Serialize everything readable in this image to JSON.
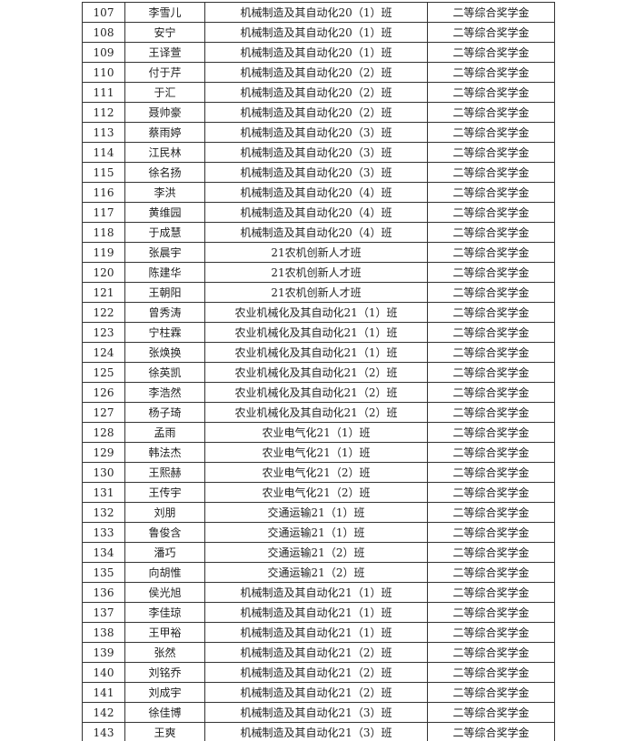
{
  "table": {
    "rows": [
      [
        "107",
        "李雪儿",
        "机械制造及其自动化20（1）班",
        "二等综合奖学金"
      ],
      [
        "108",
        "安宁",
        "机械制造及其自动化20（1）班",
        "二等综合奖学金"
      ],
      [
        "109",
        "王译萱",
        "机械制造及其自动化20（1）班",
        "二等综合奖学金"
      ],
      [
        "110",
        "付于芹",
        "机械制造及其自动化20（2）班",
        "二等综合奖学金"
      ],
      [
        "111",
        "于汇",
        "机械制造及其自动化20（2）班",
        "二等综合奖学金"
      ],
      [
        "112",
        "聂帅豪",
        "机械制造及其自动化20（2）班",
        "二等综合奖学金"
      ],
      [
        "113",
        "蔡雨婷",
        "机械制造及其自动化20（3）班",
        "二等综合奖学金"
      ],
      [
        "114",
        "江民林",
        "机械制造及其自动化20（3）班",
        "二等综合奖学金"
      ],
      [
        "115",
        "徐名扬",
        "机械制造及其自动化20（3）班",
        "二等综合奖学金"
      ],
      [
        "116",
        "李洪",
        "机械制造及其自动化20（4）班",
        "二等综合奖学金"
      ],
      [
        "117",
        "黄维园",
        "机械制造及其自动化20（4）班",
        "二等综合奖学金"
      ],
      [
        "118",
        "于成慧",
        "机械制造及其自动化20（4）班",
        "二等综合奖学金"
      ],
      [
        "119",
        "张晨宇",
        "21农机创新人才班",
        "二等综合奖学金"
      ],
      [
        "120",
        "陈建华",
        "21农机创新人才班",
        "二等综合奖学金"
      ],
      [
        "121",
        "王朝阳",
        "21农机创新人才班",
        "二等综合奖学金"
      ],
      [
        "122",
        "曾秀涛",
        "农业机械化及其自动化21（1）班",
        "二等综合奖学金"
      ],
      [
        "123",
        "宁柱霖",
        "农业机械化及其自动化21（1）班",
        "二等综合奖学金"
      ],
      [
        "124",
        "张焕换",
        "农业机械化及其自动化21（1）班",
        "二等综合奖学金"
      ],
      [
        "125",
        "徐英凯",
        "农业机械化及其自动化21（2）班",
        "二等综合奖学金"
      ],
      [
        "126",
        "李浩然",
        "农业机械化及其自动化21（2）班",
        "二等综合奖学金"
      ],
      [
        "127",
        "杨子琦",
        "农业机械化及其自动化21（2）班",
        "二等综合奖学金"
      ],
      [
        "128",
        "孟雨",
        "农业电气化21（1）班",
        "二等综合奖学金"
      ],
      [
        "129",
        "韩法杰",
        "农业电气化21（1）班",
        "二等综合奖学金"
      ],
      [
        "130",
        "王熙赫",
        "农业电气化21（2）班",
        "二等综合奖学金"
      ],
      [
        "131",
        "王传宇",
        "农业电气化21（2）班",
        "二等综合奖学金"
      ],
      [
        "132",
        "刘朋",
        "交通运输21（1）班",
        "二等综合奖学金"
      ],
      [
        "133",
        "鲁俊含",
        "交通运输21（1）班",
        "二等综合奖学金"
      ],
      [
        "134",
        "潘巧",
        "交通运输21（2）班",
        "二等综合奖学金"
      ],
      [
        "135",
        "向胡惟",
        "交通运输21（2）班",
        "二等综合奖学金"
      ],
      [
        "136",
        "侯光旭",
        "机械制造及其自动化21（1）班",
        "二等综合奖学金"
      ],
      [
        "137",
        "李佳琼",
        "机械制造及其自动化21（1）班",
        "二等综合奖学金"
      ],
      [
        "138",
        "王甲裕",
        "机械制造及其自动化21（1）班",
        "二等综合奖学金"
      ],
      [
        "139",
        "张然",
        "机械制造及其自动化21（2）班",
        "二等综合奖学金"
      ],
      [
        "140",
        "刘铭乔",
        "机械制造及其自动化21（2）班",
        "二等综合奖学金"
      ],
      [
        "141",
        "刘成宇",
        "机械制造及其自动化21（2）班",
        "二等综合奖学金"
      ],
      [
        "142",
        "徐佳博",
        "机械制造及其自动化21（3）班",
        "二等综合奖学金"
      ],
      [
        "143",
        "王爽",
        "机械制造及其自动化21（3）班",
        "二等综合奖学金"
      ]
    ]
  }
}
